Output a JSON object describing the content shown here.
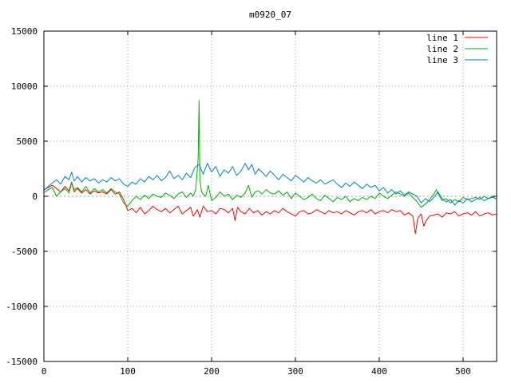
{
  "chart_data": {
    "type": "line",
    "title": "m0920_07",
    "xlabel": "",
    "ylabel": "",
    "xlim": [
      0,
      540
    ],
    "ylim": [
      -15000,
      15000
    ],
    "xticks": [
      0,
      100,
      200,
      300,
      400,
      500
    ],
    "yticks": [
      -15000,
      -10000,
      -5000,
      0,
      5000,
      10000,
      15000
    ],
    "grid": true,
    "legend": "top-right",
    "zero_line_color": "#a0a0a0",
    "series": [
      {
        "name": "line 1",
        "color": "#ff0000",
        "x": [
          0,
          5,
          10,
          15,
          20,
          25,
          30,
          33,
          36,
          40,
          45,
          50,
          55,
          60,
          65,
          70,
          75,
          80,
          85,
          90,
          95,
          100,
          105,
          110,
          115,
          120,
          125,
          130,
          135,
          140,
          145,
          150,
          155,
          160,
          165,
          170,
          175,
          178,
          180,
          183,
          186,
          190,
          195,
          200,
          205,
          210,
          215,
          220,
          225,
          228,
          231,
          235,
          240,
          245,
          250,
          255,
          260,
          265,
          270,
          275,
          280,
          285,
          290,
          295,
          300,
          305,
          310,
          315,
          320,
          325,
          330,
          335,
          340,
          345,
          350,
          355,
          360,
          365,
          370,
          375,
          380,
          385,
          390,
          395,
          400,
          405,
          410,
          415,
          420,
          425,
          430,
          435,
          440,
          443,
          446,
          450,
          453,
          456,
          460,
          465,
          470,
          475,
          480,
          485,
          490,
          495,
          500,
          505,
          510,
          515,
          520,
          525,
          530,
          535,
          540
        ],
        "y": [
          600,
          800,
          1000,
          700,
          400,
          900,
          500,
          1300,
          400,
          700,
          300,
          600,
          200,
          500,
          300,
          400,
          200,
          600,
          200,
          400,
          -300,
          -1300,
          -1100,
          -1500,
          -1000,
          -1600,
          -1300,
          -900,
          -1200,
          -1400,
          -1100,
          -1500,
          -1200,
          -900,
          -1600,
          -1300,
          -1000,
          -1800,
          -1600,
          -1200,
          -1900,
          -900,
          -1400,
          -1300,
          -1600,
          -1100,
          -1200,
          -1500,
          -1100,
          -2200,
          -1000,
          -1400,
          -1600,
          -1100,
          -1500,
          -1300,
          -1700,
          -1400,
          -1600,
          -1300,
          -1500,
          -1100,
          -1400,
          -1600,
          -1800,
          -1400,
          -1300,
          -1600,
          -1500,
          -1200,
          -1400,
          -1600,
          -1300,
          -1500,
          -1400,
          -1600,
          -1300,
          -1500,
          -1700,
          -1400,
          -1300,
          -1500,
          -1200,
          -1600,
          -1400,
          -1300,
          -1500,
          -1200,
          -1400,
          -1300,
          -1700,
          -1500,
          -1800,
          -3400,
          -2000,
          -1600,
          -2700,
          -2200,
          -1800,
          -1700,
          -1600,
          -1900,
          -1500,
          -1600,
          -1400,
          -1800,
          -1600,
          -1500,
          -1700,
          -1400,
          -1800,
          -1600,
          -1500,
          -1700,
          -1600
        ]
      },
      {
        "name": "line 2",
        "color": "#00b000",
        "x": [
          0,
          5,
          10,
          15,
          20,
          25,
          30,
          33,
          36,
          40,
          45,
          50,
          55,
          60,
          65,
          70,
          75,
          80,
          85,
          90,
          95,
          100,
          105,
          110,
          115,
          120,
          125,
          130,
          135,
          140,
          145,
          150,
          155,
          160,
          165,
          170,
          175,
          178,
          181,
          184,
          185,
          186,
          188,
          190,
          193,
          196,
          200,
          205,
          210,
          215,
          220,
          225,
          230,
          235,
          240,
          244,
          248,
          252,
          256,
          260,
          265,
          270,
          275,
          280,
          285,
          290,
          295,
          300,
          305,
          310,
          315,
          320,
          325,
          330,
          335,
          340,
          345,
          350,
          355,
          360,
          365,
          370,
          375,
          380,
          385,
          390,
          395,
          400,
          405,
          410,
          415,
          420,
          425,
          430,
          435,
          440,
          445,
          450,
          455,
          460,
          465,
          468,
          471,
          475,
          480,
          485,
          490,
          495,
          500,
          505,
          510,
          515,
          520,
          525,
          530,
          535,
          540
        ],
        "y": [
          300,
          600,
          800,
          0,
          400,
          700,
          300,
          1200,
          600,
          800,
          400,
          900,
          300,
          700,
          400,
          600,
          300,
          700,
          400,
          200,
          -600,
          -900,
          -400,
          0,
          -300,
          100,
          -200,
          200,
          0,
          -100,
          300,
          100,
          -200,
          200,
          400,
          -100,
          300,
          0,
          600,
          3400,
          8700,
          1500,
          400,
          200,
          0,
          1000,
          -400,
          -100,
          400,
          0,
          200,
          -300,
          100,
          -100,
          300,
          1000,
          -100,
          400,
          500,
          200,
          600,
          300,
          200,
          500,
          100,
          400,
          -200,
          300,
          0,
          -300,
          -100,
          200,
          -200,
          -400,
          100,
          -200,
          -500,
          -100,
          -300,
          0,
          -500,
          -200,
          -400,
          -100,
          -300,
          0,
          -200,
          300,
          0,
          -200,
          100,
          400,
          200,
          0,
          300,
          -100,
          -500,
          -1000,
          -700,
          -300,
          200,
          600,
          100,
          -400,
          -200,
          -600,
          -300,
          -500,
          -100,
          -300,
          -200,
          -100,
          -300,
          0,
          -200,
          -100,
          -200
        ]
      },
      {
        "name": "line 3",
        "color": "#0080d0",
        "x": [
          0,
          5,
          10,
          15,
          20,
          25,
          30,
          33,
          36,
          40,
          45,
          50,
          55,
          60,
          65,
          70,
          75,
          80,
          85,
          90,
          95,
          100,
          105,
          110,
          115,
          120,
          125,
          130,
          135,
          140,
          145,
          150,
          155,
          160,
          165,
          170,
          175,
          180,
          185,
          190,
          195,
          200,
          205,
          210,
          215,
          220,
          225,
          230,
          235,
          240,
          244,
          248,
          252,
          256,
          260,
          265,
          270,
          275,
          280,
          285,
          290,
          295,
          300,
          305,
          310,
          315,
          320,
          325,
          330,
          335,
          340,
          345,
          350,
          355,
          360,
          365,
          370,
          375,
          380,
          385,
          390,
          395,
          400,
          405,
          410,
          415,
          420,
          425,
          430,
          435,
          440,
          445,
          450,
          455,
          460,
          465,
          470,
          475,
          480,
          485,
          490,
          495,
          500,
          505,
          510,
          515,
          520,
          525,
          530,
          535,
          540
        ],
        "y": [
          500,
          900,
          1200,
          1500,
          1100,
          1800,
          1500,
          2200,
          1400,
          1800,
          1300,
          1700,
          1400,
          1600,
          1200,
          1500,
          1300,
          1700,
          1400,
          1600,
          1100,
          900,
          1300,
          1100,
          1600,
          1300,
          1800,
          1500,
          1900,
          1400,
          1700,
          2300,
          1600,
          1900,
          1500,
          2100,
          1700,
          2600,
          2900,
          2000,
          3000,
          2200,
          2700,
          1800,
          2400,
          2100,
          2700,
          1900,
          2300,
          3000,
          2400,
          2900,
          2000,
          2500,
          2200,
          1800,
          2300,
          1900,
          1500,
          2000,
          1700,
          1400,
          1900,
          1600,
          1300,
          1700,
          1400,
          1200,
          1500,
          1100,
          1300,
          1500,
          1100,
          800,
          1200,
          900,
          1300,
          1000,
          700,
          1100,
          800,
          1000,
          500,
          800,
          300,
          600,
          200,
          500,
          100,
          400,
          200,
          0,
          -600,
          -200,
          -500,
          -100,
          400,
          -200,
          -500,
          -300,
          -800,
          -400,
          -600,
          -200,
          -500,
          -300,
          -100,
          -400,
          -200,
          0,
          -300
        ]
      }
    ]
  }
}
